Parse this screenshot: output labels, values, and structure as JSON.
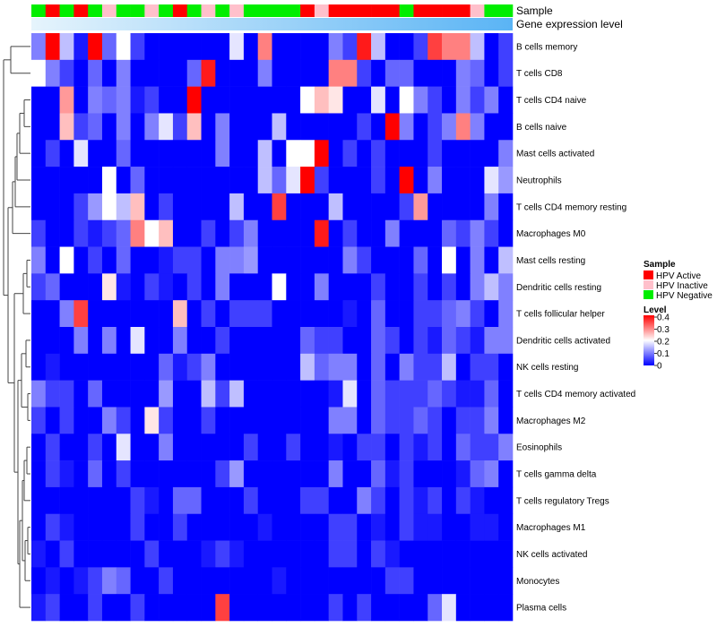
{
  "chart_data": {
    "type": "heatmap",
    "annotations": {
      "sample_label": "Sample",
      "expression_label": "Gene expression level"
    },
    "sample_groups": [
      "N",
      "A",
      "N",
      "A",
      "N",
      "I",
      "N",
      "N",
      "I",
      "N",
      "A",
      "N",
      "I",
      "N",
      "I",
      "N",
      "N",
      "N",
      "N",
      "A",
      "I",
      "A",
      "A",
      "A",
      "A",
      "A",
      "N",
      "A",
      "A",
      "A",
      "A",
      "I",
      "N",
      "N"
    ],
    "legend": {
      "sample_title": "Sample",
      "sample_entries": [
        {
          "key": "A",
          "label": "HPV Active",
          "color": "#ff0000"
        },
        {
          "key": "I",
          "label": "HPV Inactive",
          "color": "#ffc0cb"
        },
        {
          "key": "N",
          "label": "HPV Negative",
          "color": "#00ee00"
        }
      ],
      "level_title": "Level",
      "level_ticks": [
        "0.4",
        "0.3",
        "0.2",
        "0.1",
        "0"
      ],
      "level_range": [
        0,
        0.4
      ]
    },
    "colors": {
      "low": "#0000ff",
      "mid": "#ffffff",
      "high": "#ff0000"
    },
    "rows": [
      {
        "name": "B cells memory",
        "values": [
          0.1,
          0.4,
          0.15,
          0.02,
          0.4,
          0.08,
          0.2,
          0.05,
          0,
          0,
          0,
          0,
          0,
          0,
          0.18,
          0,
          0.3,
          0,
          0,
          0,
          0,
          0.1,
          0.05,
          0.38,
          0.15,
          0,
          0,
          0.05,
          0.35,
          0.3,
          0.3,
          0.15,
          0,
          0.05
        ]
      },
      {
        "name": "T cells CD8",
        "values": [
          0.2,
          0.1,
          0.05,
          0,
          0.08,
          0,
          0.1,
          0,
          0,
          0,
          0,
          0.08,
          0.38,
          0,
          0,
          0,
          0.1,
          0,
          0,
          0,
          0,
          0.3,
          0.3,
          0.05,
          0,
          0.08,
          0.08,
          0,
          0,
          0,
          0.1,
          0.08,
          0,
          0.05
        ]
      },
      {
        "name": "T cells CD4 naive",
        "values": [
          0,
          0,
          0.28,
          0,
          0.1,
          0.08,
          0.1,
          0.02,
          0.05,
          0,
          0,
          0.4,
          0,
          0,
          0,
          0,
          0,
          0,
          0,
          0.2,
          0.25,
          0.22,
          0,
          0,
          0.18,
          0,
          0.2,
          0.1,
          0.05,
          0,
          0.1,
          0.05,
          0.1,
          0
        ]
      },
      {
        "name": "B cells naive",
        "values": [
          0,
          0,
          0.25,
          0.05,
          0.08,
          0,
          0.1,
          0,
          0.1,
          0.18,
          0.05,
          0.25,
          0,
          0.1,
          0,
          0,
          0,
          0.15,
          0,
          0,
          0,
          0,
          0,
          0.05,
          0,
          0.4,
          0.1,
          0,
          0.05,
          0.1,
          0.3,
          0.1,
          0,
          0
        ]
      },
      {
        "name": "Mast cells activated",
        "values": [
          0,
          0.05,
          0,
          0.18,
          0,
          0,
          0.08,
          0,
          0,
          0,
          0,
          0,
          0,
          0.1,
          0,
          0,
          0.15,
          0,
          0.2,
          0.2,
          0.4,
          0,
          0.05,
          0,
          0.05,
          0,
          0,
          0,
          0.05,
          0,
          0,
          0,
          0,
          0.1
        ]
      },
      {
        "name": "Neutrophils",
        "values": [
          0,
          0,
          0,
          0,
          0,
          0.2,
          0,
          0.08,
          0,
          0,
          0,
          0,
          0,
          0,
          0,
          0,
          0.15,
          0.08,
          0.18,
          0.4,
          0.05,
          0,
          0,
          0,
          0.05,
          0,
          0.4,
          0,
          0.1,
          0,
          0,
          0,
          0.18,
          0.12
        ]
      },
      {
        "name": "T cells CD4 memory resting",
        "values": [
          0,
          0,
          0,
          0.05,
          0.12,
          0.2,
          0.15,
          0.25,
          0,
          0.05,
          0,
          0,
          0,
          0,
          0.15,
          0,
          0,
          0.35,
          0,
          0,
          0,
          0.15,
          0,
          0,
          0,
          0,
          0.05,
          0.28,
          0,
          0,
          0,
          0,
          0.1,
          0
        ]
      },
      {
        "name": "Macrophages M0",
        "values": [
          0.05,
          0,
          0,
          0.05,
          0.02,
          0.05,
          0.08,
          0.3,
          0.2,
          0.25,
          0,
          0,
          0.05,
          0,
          0.05,
          0.1,
          0,
          0,
          0,
          0,
          0.38,
          0,
          0.05,
          0,
          0,
          0.1,
          0,
          0,
          0,
          0.08,
          0.05,
          0.1,
          0.05,
          0
        ]
      },
      {
        "name": "Mast cells resting",
        "values": [
          0.1,
          0,
          0.2,
          0,
          0.05,
          0,
          0.08,
          0,
          0,
          0.02,
          0.05,
          0.05,
          0,
          0.1,
          0.1,
          0.12,
          0,
          0,
          0,
          0,
          0,
          0,
          0.1,
          0.05,
          0,
          0,
          0,
          0.08,
          0,
          0.2,
          0,
          0.1,
          0,
          0.15
        ]
      },
      {
        "name": "Dendritic cells resting",
        "values": [
          0.05,
          0.08,
          0,
          0,
          0,
          0.22,
          0.02,
          0,
          0.05,
          0.02,
          0,
          0.05,
          0,
          0.1,
          0,
          0,
          0,
          0.2,
          0,
          0,
          0.1,
          0,
          0,
          0,
          0.05,
          0,
          0,
          0.05,
          0,
          0.05,
          0,
          0.1,
          0.15,
          0.1
        ]
      },
      {
        "name": "T cells follicular helper",
        "values": [
          0,
          0,
          0.1,
          0.35,
          0,
          0,
          0,
          0,
          0,
          0,
          0.25,
          0,
          0.05,
          0,
          0.05,
          0.05,
          0.05,
          0,
          0,
          0,
          0,
          0,
          0.02,
          0,
          0.08,
          0,
          0,
          0.05,
          0.05,
          0.08,
          0.1,
          0.05,
          0,
          0.1
        ]
      },
      {
        "name": "Dendritic cells activated",
        "values": [
          0,
          0,
          0,
          0.1,
          0,
          0.1,
          0,
          0.18,
          0,
          0,
          0.1,
          0,
          0,
          0.05,
          0,
          0,
          0,
          0,
          0,
          0.08,
          0.05,
          0.05,
          0,
          0,
          0.08,
          0.05,
          0,
          0.05,
          0.02,
          0.08,
          0.05,
          0.02,
          0.1,
          0.1
        ]
      },
      {
        "name": "NK cells resting",
        "values": [
          0,
          0.02,
          0,
          0,
          0,
          0,
          0,
          0,
          0,
          0.08,
          0.02,
          0.05,
          0.1,
          0,
          0,
          0,
          0,
          0,
          0,
          0.15,
          0.08,
          0.1,
          0.1,
          0,
          0.08,
          0,
          0.1,
          0.05,
          0.05,
          0.15,
          0,
          0.05,
          0.05,
          0
        ]
      },
      {
        "name": "T cells CD4 memory activated",
        "values": [
          0.1,
          0.05,
          0.05,
          0,
          0.08,
          0,
          0,
          0,
          0,
          0.12,
          0,
          0,
          0.15,
          0.05,
          0.15,
          0,
          0,
          0,
          0,
          0,
          0,
          0.02,
          0.18,
          0,
          0.08,
          0.05,
          0.05,
          0.05,
          0.08,
          0.05,
          0.02,
          0.02,
          0.08,
          0
        ]
      },
      {
        "name": "Macrophages M2",
        "values": [
          0.05,
          0,
          0.05,
          0,
          0,
          0.1,
          0.05,
          0,
          0.22,
          0.05,
          0,
          0,
          0.05,
          0,
          0,
          0,
          0,
          0,
          0,
          0,
          0,
          0.1,
          0.1,
          0,
          0.08,
          0.05,
          0.05,
          0.08,
          0.05,
          0,
          0.05,
          0.05,
          0.1,
          0
        ]
      },
      {
        "name": "Eosinophils",
        "values": [
          0,
          0.05,
          0,
          0,
          0.05,
          0,
          0.18,
          0,
          0,
          0.1,
          0,
          0,
          0,
          0,
          0,
          0.05,
          0,
          0,
          0.05,
          0,
          0,
          0.02,
          0,
          0.05,
          0.05,
          0,
          0.05,
          0.02,
          0.05,
          0,
          0.08,
          0.05,
          0.05,
          0.1
        ]
      },
      {
        "name": "T cells gamma delta",
        "values": [
          0,
          0.05,
          0.02,
          0,
          0.08,
          0,
          0.05,
          0,
          0,
          0,
          0,
          0,
          0,
          0.05,
          0.12,
          0,
          0,
          0,
          0,
          0,
          0,
          0.1,
          0,
          0,
          0.08,
          0.02,
          0.05,
          0,
          0,
          0,
          0.02,
          0.08,
          0.1,
          0
        ]
      },
      {
        "name": "T cells regulatory  Tregs",
        "values": [
          0,
          0,
          0,
          0,
          0,
          0,
          0,
          0.05,
          0.02,
          0,
          0.08,
          0.08,
          0,
          0,
          0,
          0.05,
          0,
          0,
          0,
          0.05,
          0.05,
          0,
          0,
          0.1,
          0.05,
          0,
          0.05,
          0.02,
          0.05,
          0,
          0.05,
          0.02,
          0,
          0
        ]
      },
      {
        "name": "Macrophages M1",
        "values": [
          0,
          0.05,
          0.02,
          0,
          0,
          0,
          0,
          0.05,
          0,
          0,
          0.05,
          0,
          0,
          0,
          0,
          0,
          0.02,
          0,
          0,
          0,
          0,
          0.05,
          0.05,
          0,
          0.02,
          0,
          0.05,
          0.02,
          0.02,
          0,
          0,
          0.02,
          0.02,
          0
        ]
      },
      {
        "name": "NK cells activated",
        "values": [
          0.02,
          0,
          0.05,
          0,
          0,
          0,
          0,
          0,
          0.05,
          0,
          0,
          0,
          0.02,
          0.05,
          0.02,
          0,
          0,
          0,
          0,
          0,
          0,
          0.05,
          0.05,
          0,
          0.05,
          0.02,
          0,
          0,
          0,
          0,
          0,
          0,
          0,
          0
        ]
      },
      {
        "name": "Monocytes",
        "values": [
          0,
          0.02,
          0,
          0.02,
          0.05,
          0.1,
          0.08,
          0,
          0,
          0.05,
          0,
          0,
          0,
          0,
          0,
          0,
          0,
          0.02,
          0,
          0,
          0,
          0,
          0,
          0,
          0,
          0.05,
          0.05,
          0,
          0,
          0,
          0,
          0,
          0,
          0
        ]
      },
      {
        "name": "Plasma cells",
        "values": [
          0.02,
          0.05,
          0,
          0,
          0.05,
          0,
          0,
          0.05,
          0,
          0,
          0,
          0,
          0,
          0.35,
          0,
          0,
          0,
          0,
          0,
          0,
          0,
          0.05,
          0,
          0.05,
          0,
          0,
          0,
          0,
          0.08,
          0.18,
          0,
          0,
          0,
          0
        ]
      }
    ]
  }
}
